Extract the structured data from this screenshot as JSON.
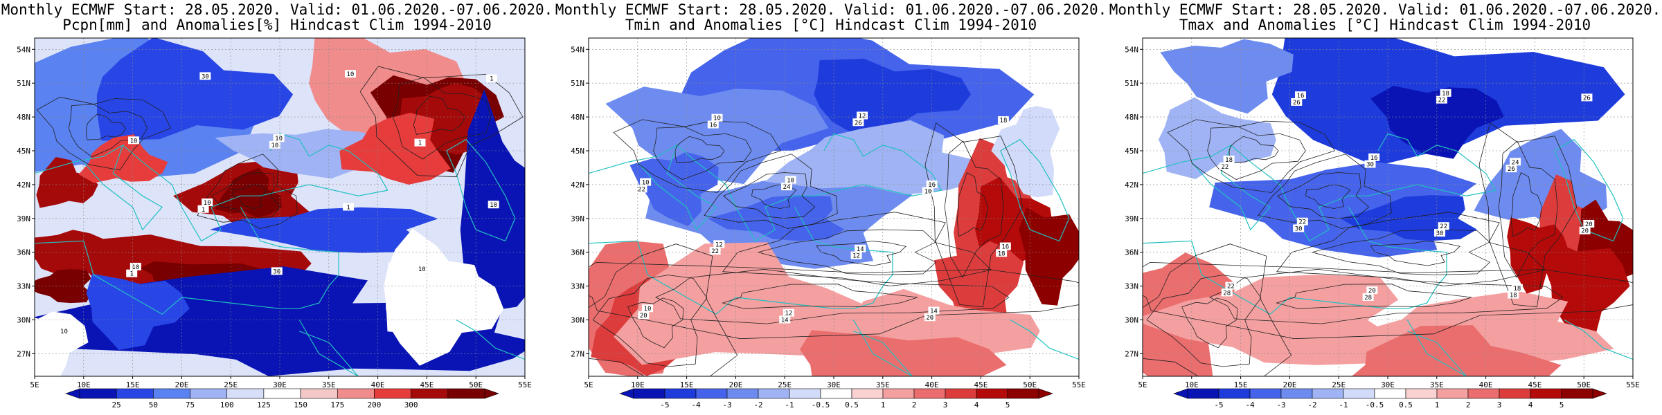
{
  "panels": [
    {
      "id": "pcpn",
      "title_line1": "Monthly ECMWF Start: 28.05.2020. Valid: 01.06.2020.-07.06.2020.",
      "title_line2": "Pcpn[mm] and Anomalies[%] Hindcast Clim 1994-2010",
      "lat_labels": [
        "54N",
        "51N",
        "48N",
        "45N",
        "42N",
        "39N",
        "36N",
        "33N",
        "30N",
        "27N"
      ],
      "lon_labels": [
        "5E",
        "10E",
        "15E",
        "20E",
        "25E",
        "30E",
        "35E",
        "40E",
        "45E",
        "50E",
        "55E"
      ],
      "colorbar_labels": [
        "25",
        "50",
        "75",
        "100",
        "125",
        "150",
        "175",
        "200",
        "300"
      ],
      "colorbar_colors": [
        "#0a14b4",
        "#2846e6",
        "#5a82f0",
        "#a0b4f5",
        "#d7def8",
        "#ffffff",
        "#f5c8c8",
        "#f08c8c",
        "#e63c3c",
        "#a50a0a",
        "#780000"
      ],
      "contour_labels": [
        "10",
        "10",
        "10",
        "10",
        "10",
        "10",
        "10",
        "10",
        "30",
        "30",
        "1",
        "1",
        "1",
        "1",
        "1",
        "10"
      ]
    },
    {
      "id": "tmin",
      "title_line1": "Monthly ECMWF Start: 28.05.2020. Valid: 01.06.2020.-07.06.2020.",
      "title_line2": "Tmin and Anomalies [°C] Hindcast Clim 1994-2010",
      "lat_labels": [
        "54N",
        "51N",
        "48N",
        "45N",
        "42N",
        "39N",
        "36N",
        "33N",
        "30N",
        "27N"
      ],
      "lon_labels": [
        "5E",
        "10E",
        "15E",
        "20E",
        "25E",
        "30E",
        "35E",
        "40E",
        "45E",
        "50E",
        "55E"
      ],
      "colorbar_labels": [
        "-5",
        "-4",
        "-3",
        "-2",
        "-1",
        "-0.5",
        "0.5",
        "1",
        "2",
        "3",
        "4",
        "5"
      ],
      "colorbar_colors": [
        "#0a14b4",
        "#1e3cdc",
        "#4664eb",
        "#6e8cf0",
        "#a0b4f5",
        "#d2dcfa",
        "#ffffff",
        "#fad2d2",
        "#f5a0a0",
        "#eb6e6e",
        "#dc3c3c",
        "#b40a0a",
        "#8c0000"
      ],
      "contour_labels": [
        "10",
        "12",
        "10",
        "12",
        "14",
        "16",
        "10",
        "10",
        "12",
        "14",
        "16",
        "18",
        "20",
        "22",
        "24",
        "26",
        "20",
        "18",
        "22",
        "16",
        "14",
        "12",
        "10"
      ]
    },
    {
      "id": "tmax",
      "title_line1": "Monthly ECMWF Start: 28.05.2020. Valid: 01.06.2020.-07.06.2020.",
      "title_line2": "Tmax and Anomalies [°C] Hindcast Clim 1994-2010",
      "lat_labels": [
        "54N",
        "51N",
        "48N",
        "45N",
        "42N",
        "39N",
        "36N",
        "33N",
        "30N",
        "27N"
      ],
      "lon_labels": [
        "5E",
        "10E",
        "15E",
        "20E",
        "25E",
        "30E",
        "35E",
        "40E",
        "45E",
        "50E",
        "55E"
      ],
      "colorbar_labels": [
        "-5",
        "-4",
        "-3",
        "-2",
        "-1",
        "-0.5",
        "0.5",
        "1",
        "2",
        "3",
        "4",
        "5"
      ],
      "colorbar_colors": [
        "#0a14b4",
        "#1e3cdc",
        "#4664eb",
        "#6e8cf0",
        "#a0b4f5",
        "#d2dcfa",
        "#ffffff",
        "#fad2d2",
        "#f5a0a0",
        "#eb6e6e",
        "#dc3c3c",
        "#b40a0a",
        "#8c0000"
      ],
      "contour_labels": [
        "22",
        "22",
        "16",
        "18",
        "18",
        "20",
        "18",
        "16",
        "20",
        "22",
        "24",
        "26",
        "28",
        "30",
        "30",
        "22",
        "18",
        "20",
        "22",
        "26",
        "28",
        "30",
        "26"
      ]
    }
  ]
}
